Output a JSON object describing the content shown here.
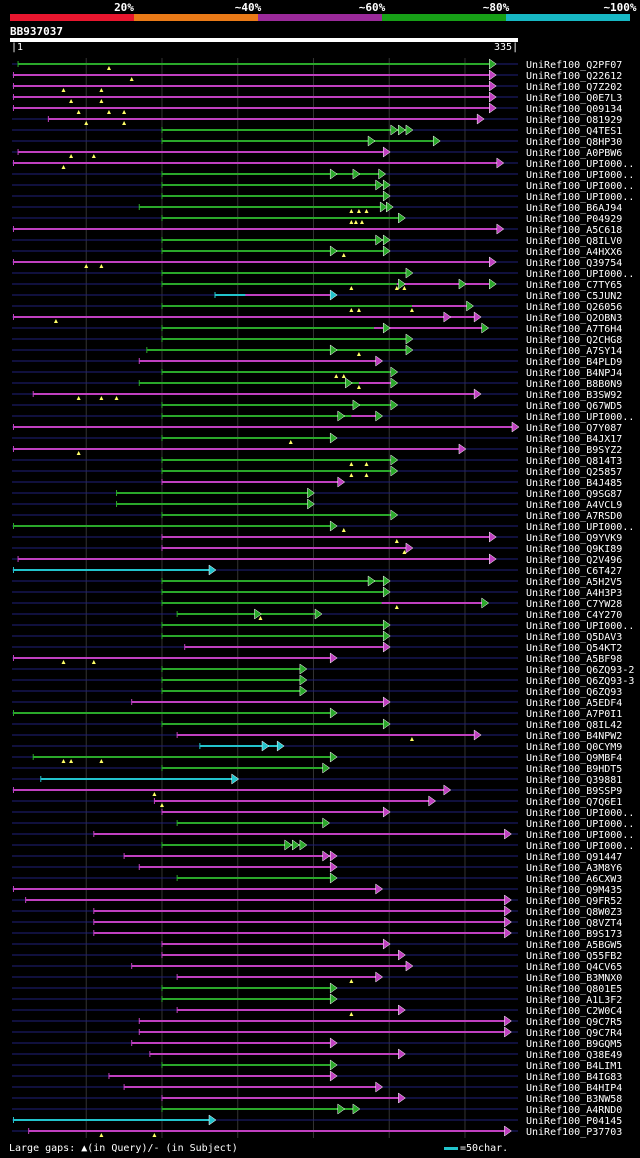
{
  "legend": {
    "colors": [
      "#e8162e",
      "#ea7a17",
      "#9b2a9a",
      "#17a017",
      "#17b8c4"
    ],
    "labels": [
      "20%",
      "~40%",
      "~60%",
      "~80%",
      "~100%"
    ]
  },
  "query": {
    "id": "BB937037",
    "start": "1",
    "end": "335"
  },
  "footer": {
    "gaps_text": "Large gaps: ▲(in Query)/‐ (in Subject)",
    "scale_text": "=50char."
  },
  "colors": {
    "magenta": "#c040c0",
    "green": "#2aa82a",
    "cyan": "#22c4cc",
    "dark_line": "#1f1f7a",
    "grid": "#333"
  },
  "chart_data": {
    "type": "alignment",
    "title": "BB937037",
    "query_length": 335,
    "hits": [
      {
        "id": "UniRef100_Q2PF07",
        "s": 5,
        "e": 320,
        "c": "g",
        "m": [
          65
        ],
        "k": [],
        "a": []
      },
      {
        "id": "UniRef100_Q22612",
        "s": 2,
        "e": 320,
        "c": "m",
        "m": [
          80
        ],
        "k": [],
        "a": []
      },
      {
        "id": "UniRef100_Q7Z202",
        "s": 2,
        "e": 320,
        "c": "m",
        "m": [
          35,
          60
        ],
        "k": [
          60
        ],
        "a": []
      },
      {
        "id": "UniRef100_Q0E7L3",
        "s": 2,
        "e": 320,
        "c": "m",
        "m": [
          40,
          60
        ],
        "k": [],
        "a": []
      },
      {
        "id": "UniRef100_Q09134",
        "s": 2,
        "e": 320,
        "c": "m",
        "m": [
          45,
          65,
          75
        ],
        "k": [],
        "a": []
      },
      {
        "id": "UniRef100_O81929",
        "s": 25,
        "e": 312,
        "c": "m",
        "m": [
          50,
          75
        ],
        "k": [],
        "a": []
      },
      {
        "id": "UniRef100_Q4TES1",
        "s": 100,
        "e": 265,
        "c": "g",
        "m": [],
        "k": [],
        "a": [
          255,
          260
        ]
      },
      {
        "id": "UniRef100_Q8HP30",
        "s": 100,
        "e": 283,
        "c": "g",
        "m": [],
        "k": [],
        "a": [
          240
        ]
      },
      {
        "id": "UniRef100_A0PBW6",
        "s": 5,
        "e": 250,
        "c": "m",
        "m": [
          40,
          55
        ],
        "k": [],
        "a": []
      },
      {
        "id": "UniRef100_UPI000..",
        "s": 2,
        "e": 325,
        "c": "m",
        "m": [
          35
        ],
        "k": [],
        "a": []
      },
      {
        "id": "UniRef100_UPI000..",
        "s": 100,
        "e": 247,
        "c": "g",
        "m": [],
        "k": [],
        "a": [
          215,
          230
        ]
      },
      {
        "id": "UniRef100_UPI000..",
        "s": 100,
        "e": 250,
        "c": "g",
        "m": [],
        "k": [],
        "a": [
          245
        ]
      },
      {
        "id": "UniRef100_UPI000..",
        "s": 100,
        "e": 250,
        "c": "g",
        "m": [],
        "k": [],
        "a": []
      },
      {
        "id": "UniRef100_B6AJ94",
        "s": 85,
        "e": 252,
        "c": "g",
        "m": [
          225,
          230,
          235
        ],
        "k": [],
        "a": [
          248
        ]
      },
      {
        "id": "UniRef100_P04929",
        "s": 100,
        "e": 260,
        "c": "g",
        "m": [
          225,
          228,
          232
        ],
        "k": [],
        "a": []
      },
      {
        "id": "UniRef100_A5C618",
        "s": 2,
        "e": 325,
        "c": "m",
        "m": [],
        "k": [],
        "a": []
      },
      {
        "id": "UniRef100_Q8ILV0",
        "s": 100,
        "e": 250,
        "c": "g",
        "m": [],
        "k": [],
        "a": [
          245
        ]
      },
      {
        "id": "UniRef100_A4HXX6",
        "s": 100,
        "e": 250,
        "c": "g",
        "m": [
          220
        ],
        "k": [],
        "a": [
          215
        ]
      },
      {
        "id": "UniRef100_Q39754",
        "s": 2,
        "e": 320,
        "c": "m",
        "m": [
          50,
          60
        ],
        "k": [],
        "a": []
      },
      {
        "id": "UniRef100_UPI000..",
        "s": 100,
        "e": 265,
        "c": "g",
        "m": [],
        "k": [],
        "a": []
      },
      {
        "id": "UniRef100_C7TY65",
        "s": 100,
        "e": 320,
        "c": "g",
        "m": [
          225,
          255,
          260
        ],
        "k": [
          255,
          320
        ],
        "a": [
          260,
          300
        ]
      },
      {
        "id": "UniRef100_C5JUN2",
        "s": 135,
        "e": 215,
        "c": "c",
        "m": [],
        "k": [
          155,
          215
        ],
        "a": []
      },
      {
        "id": "UniRef100_Q26056",
        "s": 100,
        "e": 305,
        "c": "g",
        "m": [
          225,
          230,
          265
        ],
        "k": [
          265,
          305
        ],
        "a": []
      },
      {
        "id": "UniRef100_Q2OBN3",
        "s": 2,
        "e": 310,
        "c": "m",
        "m": [
          30
        ],
        "k": [],
        "a": [
          290
        ]
      },
      {
        "id": "UniRef100_A7T6H4",
        "s": 100,
        "e": 315,
        "c": "g",
        "m": [],
        "k": [
          240,
          315
        ],
        "a": [
          250
        ]
      },
      {
        "id": "UniRef100_Q2CHG8",
        "s": 100,
        "e": 265,
        "c": "g",
        "m": [],
        "k": [],
        "a": []
      },
      {
        "id": "UniRef100_A7SY14",
        "s": 90,
        "e": 265,
        "c": "g",
        "m": [
          230
        ],
        "k": [],
        "a": [
          215
        ]
      },
      {
        "id": "UniRef100_B4PLD9",
        "s": 85,
        "e": 245,
        "c": "m",
        "m": [],
        "k": [],
        "a": []
      },
      {
        "id": "UniRef100_B4NPJ4",
        "s": 100,
        "e": 255,
        "c": "g",
        "m": [
          215,
          220
        ],
        "k": [],
        "a": []
      },
      {
        "id": "UniRef100_B8B0N9",
        "s": 85,
        "e": 255,
        "c": "g",
        "m": [
          230
        ],
        "k": [
          230,
          255
        ],
        "a": [
          225
        ]
      },
      {
        "id": "UniRef100_B3SW92",
        "s": 15,
        "e": 310,
        "c": "m",
        "m": [
          45,
          60,
          70
        ],
        "k": [],
        "a": []
      },
      {
        "id": "UniRef100_Q67WD5",
        "s": 100,
        "e": 255,
        "c": "g",
        "m": [],
        "k": [],
        "a": [
          230
        ]
      },
      {
        "id": "UniRef100_UPI000..",
        "s": 100,
        "e": 245,
        "c": "g",
        "m": [],
        "k": [
          225,
          245
        ],
        "a": [
          220
        ]
      },
      {
        "id": "UniRef100_Q7Y087",
        "s": 2,
        "e": 335,
        "c": "m",
        "m": [],
        "k": [],
        "a": []
      },
      {
        "id": "UniRef100_B4JX17",
        "s": 100,
        "e": 215,
        "c": "g",
        "m": [
          185
        ],
        "k": [],
        "a": []
      },
      {
        "id": "UniRef100_B9SYZ2",
        "s": 2,
        "e": 300,
        "c": "m",
        "m": [
          45
        ],
        "k": [],
        "a": []
      },
      {
        "id": "UniRef100_Q814T3",
        "s": 100,
        "e": 255,
        "c": "g",
        "m": [
          225,
          235
        ],
        "k": [],
        "a": []
      },
      {
        "id": "UniRef100_Q25857",
        "s": 100,
        "e": 255,
        "c": "g",
        "m": [
          225,
          235
        ],
        "k": [],
        "a": []
      },
      {
        "id": "UniRef100_B4J485",
        "s": 100,
        "e": 220,
        "c": "m",
        "m": [],
        "k": [],
        "a": []
      },
      {
        "id": "UniRef100_Q9SG87",
        "s": 70,
        "e": 200,
        "c": "g",
        "m": [],
        "k": [],
        "a": []
      },
      {
        "id": "UniRef100_A4VCL9",
        "s": 70,
        "e": 200,
        "c": "g",
        "m": [],
        "k": [],
        "a": []
      },
      {
        "id": "UniRef100_A7RSD0",
        "s": 100,
        "e": 255,
        "c": "g",
        "m": [],
        "k": [],
        "a": []
      },
      {
        "id": "UniRef100_UPI000..",
        "s": 2,
        "e": 215,
        "c": "g",
        "m": [
          220
        ],
        "k": [],
        "a": []
      },
      {
        "id": "UniRef100_Q9YVK9",
        "s": 100,
        "e": 320,
        "c": "m",
        "m": [
          255
        ],
        "k": [],
        "a": []
      },
      {
        "id": "UniRef100_Q9KI89",
        "s": 100,
        "e": 265,
        "c": "m",
        "m": [
          260
        ],
        "k": [],
        "a": []
      },
      {
        "id": "UniRef100_Q2V496",
        "s": 5,
        "e": 320,
        "c": "m",
        "m": [],
        "k": [],
        "a": []
      },
      {
        "id": "UniRef100_C6T427",
        "s": 2,
        "e": 135,
        "c": "c",
        "m": [],
        "k": [],
        "a": []
      },
      {
        "id": "UniRef100_A5H2V5",
        "s": 100,
        "e": 250,
        "c": "g",
        "m": [],
        "k": [],
        "a": [
          240
        ]
      },
      {
        "id": "UniRef100_A4H3P3",
        "s": 100,
        "e": 250,
        "c": "g",
        "m": [],
        "k": [],
        "a": []
      },
      {
        "id": "UniRef100_C7YW28",
        "s": 100,
        "e": 315,
        "c": "g",
        "m": [
          255
        ],
        "k": [
          245,
          315
        ],
        "a": []
      },
      {
        "id": "UniRef100_C4Y270",
        "s": 110,
        "e": 205,
        "c": "g",
        "m": [
          165
        ],
        "k": [],
        "a": [
          165
        ]
      },
      {
        "id": "UniRef100_UPI000..",
        "s": 100,
        "e": 250,
        "c": "g",
        "m": [],
        "k": [],
        "a": []
      },
      {
        "id": "UniRef100_Q5DAV3",
        "s": 100,
        "e": 250,
        "c": "g",
        "m": [],
        "k": [],
        "a": []
      },
      {
        "id": "UniRef100_Q54KT2",
        "s": 115,
        "e": 250,
        "c": "m",
        "m": [],
        "k": [],
        "a": []
      },
      {
        "id": "UniRef100_A5BF98",
        "s": 2,
        "e": 215,
        "c": "m",
        "m": [
          35,
          55
        ],
        "k": [],
        "a": []
      },
      {
        "id": "UniRef100_Q6ZQ93-2",
        "s": 100,
        "e": 195,
        "c": "g",
        "m": [],
        "k": [],
        "a": []
      },
      {
        "id": "UniRef100_Q6ZQ93-3",
        "s": 100,
        "e": 195,
        "c": "g",
        "m": [],
        "k": [],
        "a": []
      },
      {
        "id": "UniRef100_Q6ZQ93",
        "s": 100,
        "e": 195,
        "c": "g",
        "m": [],
        "k": [],
        "a": []
      },
      {
        "id": "UniRef100_A5EDF4",
        "s": 80,
        "e": 250,
        "c": "m",
        "m": [],
        "k": [],
        "a": []
      },
      {
        "id": "UniRef100_A7P0I1",
        "s": 2,
        "e": 215,
        "c": "g",
        "m": [],
        "k": [],
        "a": []
      },
      {
        "id": "UniRef100_Q8IL42",
        "s": 100,
        "e": 250,
        "c": "g",
        "m": [],
        "k": [],
        "a": []
      },
      {
        "id": "UniRef100_B4NPW2",
        "s": 110,
        "e": 310,
        "c": "m",
        "m": [
          265
        ],
        "k": [],
        "a": []
      },
      {
        "id": "UniRef100_Q0CYM9",
        "s": 125,
        "e": 180,
        "c": "c",
        "m": [],
        "k": [],
        "a": [
          170
        ]
      },
      {
        "id": "UniRef100_Q9MBF4",
        "s": 15,
        "e": 215,
        "c": "g",
        "m": [
          35,
          40,
          60
        ],
        "k": [],
        "a": []
      },
      {
        "id": "UniRef100_B9HDT5",
        "s": 100,
        "e": 210,
        "c": "g",
        "m": [],
        "k": [],
        "a": []
      },
      {
        "id": "UniRef100_Q39881",
        "s": 20,
        "e": 150,
        "c": "c",
        "m": [],
        "k": [],
        "a": []
      },
      {
        "id": "UniRef100_B9SSP9",
        "s": 2,
        "e": 290,
        "c": "m",
        "m": [
          95
        ],
        "k": [],
        "a": []
      },
      {
        "id": "UniRef100_Q7Q6E1",
        "s": 95,
        "e": 280,
        "c": "m",
        "m": [
          100
        ],
        "k": [],
        "a": []
      },
      {
        "id": "UniRef100_UPI000..",
        "s": 100,
        "e": 250,
        "c": "m",
        "m": [],
        "k": [],
        "a": []
      },
      {
        "id": "UniRef100_UPI000..",
        "s": 110,
        "e": 210,
        "c": "g",
        "m": [],
        "k": [],
        "a": []
      },
      {
        "id": "UniRef100_UPI000..",
        "s": 55,
        "e": 330,
        "c": "m",
        "m": [],
        "k": [],
        "a": []
      },
      {
        "id": "UniRef100_UPI000..",
        "s": 100,
        "e": 195,
        "c": "g",
        "m": [],
        "k": [],
        "a": [
          185,
          190
        ]
      },
      {
        "id": "UniRef100_Q91447",
        "s": 75,
        "e": 215,
        "c": "m",
        "m": [],
        "k": [],
        "a": [
          210
        ]
      },
      {
        "id": "UniRef100_A3M8Y6",
        "s": 85,
        "e": 215,
        "c": "m",
        "m": [],
        "k": [],
        "a": []
      },
      {
        "id": "UniRef100_A6CXW3",
        "s": 110,
        "e": 215,
        "c": "g",
        "m": [],
        "k": [],
        "a": []
      },
      {
        "id": "UniRef100_Q9M435",
        "s": 2,
        "e": 245,
        "c": "m",
        "m": [],
        "k": [],
        "a": []
      },
      {
        "id": "UniRef100_Q9FR52",
        "s": 10,
        "e": 330,
        "c": "m",
        "m": [],
        "k": [],
        "a": []
      },
      {
        "id": "UniRef100_Q8W0Z3",
        "s": 55,
        "e": 330,
        "c": "m",
        "m": [],
        "k": [],
        "a": []
      },
      {
        "id": "UniRef100_Q8VZT4",
        "s": 55,
        "e": 330,
        "c": "m",
        "m": [],
        "k": [],
        "a": []
      },
      {
        "id": "UniRef100_B9S173",
        "s": 55,
        "e": 330,
        "c": "m",
        "m": [],
        "k": [],
        "a": []
      },
      {
        "id": "UniRef100_A5BGW5",
        "s": 100,
        "e": 250,
        "c": "m",
        "m": [],
        "k": [],
        "a": []
      },
      {
        "id": "UniRef100_Q55FB2",
        "s": 100,
        "e": 260,
        "c": "m",
        "m": [],
        "k": [],
        "a": []
      },
      {
        "id": "UniRef100_Q4CV65",
        "s": 80,
        "e": 265,
        "c": "m",
        "m": [],
        "k": [],
        "a": []
      },
      {
        "id": "UniRef100_B3MNX0",
        "s": 110,
        "e": 245,
        "c": "m",
        "m": [
          225
        ],
        "k": [],
        "a": []
      },
      {
        "id": "UniRef100_Q801E5",
        "s": 100,
        "e": 215,
        "c": "g",
        "m": [],
        "k": [],
        "a": []
      },
      {
        "id": "UniRef100_A1L3F2",
        "s": 100,
        "e": 215,
        "c": "g",
        "m": [],
        "k": [],
        "a": []
      },
      {
        "id": "UniRef100_C2W0C4",
        "s": 110,
        "e": 260,
        "c": "m",
        "m": [
          225
        ],
        "k": [],
        "a": []
      },
      {
        "id": "UniRef100_Q9C7R5",
        "s": 85,
        "e": 330,
        "c": "m",
        "m": [],
        "k": [],
        "a": []
      },
      {
        "id": "UniRef100_Q9C7R4",
        "s": 85,
        "e": 330,
        "c": "m",
        "m": [],
        "k": [],
        "a": []
      },
      {
        "id": "UniRef100_B9GQM5",
        "s": 80,
        "e": 215,
        "c": "m",
        "m": [],
        "k": [],
        "a": []
      },
      {
        "id": "UniRef100_Q38E49",
        "s": 92,
        "e": 260,
        "c": "m",
        "m": [],
        "k": [],
        "a": []
      },
      {
        "id": "UniRef100_B4LIM1",
        "s": 100,
        "e": 215,
        "c": "g",
        "m": [],
        "k": [],
        "a": []
      },
      {
        "id": "UniRef100_B4IG83",
        "s": 65,
        "e": 215,
        "c": "m",
        "m": [],
        "k": [],
        "a": []
      },
      {
        "id": "UniRef100_B4HIP4",
        "s": 75,
        "e": 245,
        "c": "m",
        "m": [],
        "k": [],
        "a": []
      },
      {
        "id": "UniRef100_B3NW58",
        "s": 100,
        "e": 260,
        "c": "m",
        "m": [],
        "k": [],
        "a": []
      },
      {
        "id": "UniRef100_A4RND0",
        "s": 100,
        "e": 230,
        "c": "g",
        "m": [],
        "k": [],
        "a": [
          220
        ]
      },
      {
        "id": "UniRef100_P04145",
        "s": 2,
        "e": 135,
        "c": "c",
        "m": [],
        "k": [],
        "a": []
      },
      {
        "id": "UniRef100_P37703",
        "s": 12,
        "e": 330,
        "c": "m",
        "m": [
          60,
          95
        ],
        "k": [],
        "a": []
      }
    ]
  }
}
